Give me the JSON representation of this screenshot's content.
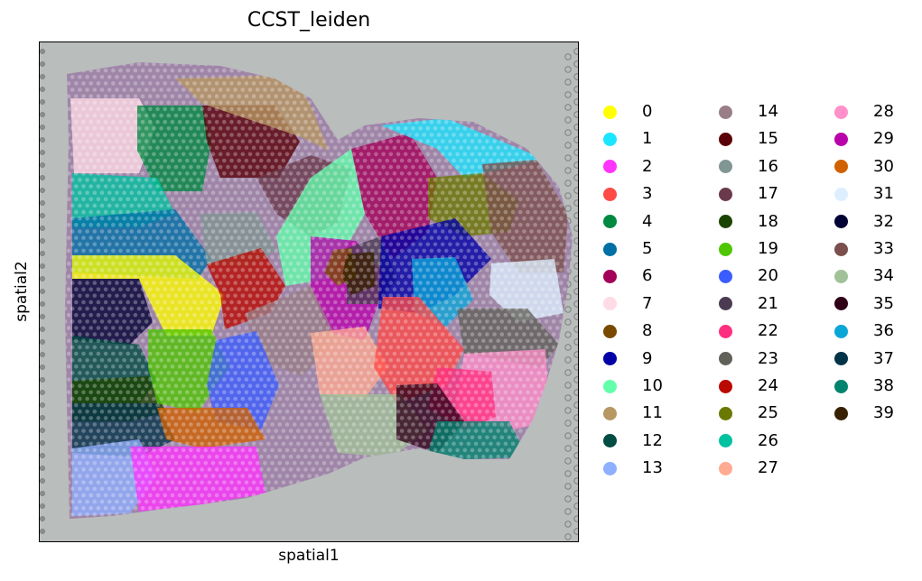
{
  "chart_data": {
    "type": "scatter",
    "title": "CCST_leiden",
    "xlabel": "spatial1",
    "ylabel": "spatial2",
    "x_ticks": "none",
    "y_ticks": "none",
    "grid": false,
    "background": "histology tissue image",
    "legend_placement": "right",
    "legend_columns": 3,
    "series": [
      {
        "name": "0",
        "color": "#ffff00"
      },
      {
        "name": "1",
        "color": "#1ce6ff"
      },
      {
        "name": "2",
        "color": "#ff34ff"
      },
      {
        "name": "3",
        "color": "#ff4a46"
      },
      {
        "name": "4",
        "color": "#008941"
      },
      {
        "name": "5",
        "color": "#006fa6"
      },
      {
        "name": "6",
        "color": "#a30059"
      },
      {
        "name": "7",
        "color": "#ffdbe5"
      },
      {
        "name": "8",
        "color": "#7a4900"
      },
      {
        "name": "9",
        "color": "#0000a6"
      },
      {
        "name": "10",
        "color": "#63ffac"
      },
      {
        "name": "11",
        "color": "#b79762"
      },
      {
        "name": "12",
        "color": "#004d43"
      },
      {
        "name": "13",
        "color": "#8fb0ff"
      },
      {
        "name": "14",
        "color": "#997d87"
      },
      {
        "name": "15",
        "color": "#5a0007"
      },
      {
        "name": "16",
        "color": "#809693"
      },
      {
        "name": "17",
        "color": "#6a3a4c"
      },
      {
        "name": "18",
        "color": "#1b4400"
      },
      {
        "name": "19",
        "color": "#4fc601"
      },
      {
        "name": "20",
        "color": "#3b5dff"
      },
      {
        "name": "21",
        "color": "#4a3b53"
      },
      {
        "name": "22",
        "color": "#ff2f80"
      },
      {
        "name": "23",
        "color": "#61615a"
      },
      {
        "name": "24",
        "color": "#ba0900"
      },
      {
        "name": "25",
        "color": "#6b7900"
      },
      {
        "name": "26",
        "color": "#00c2a0"
      },
      {
        "name": "27",
        "color": "#ffaa92"
      },
      {
        "name": "28",
        "color": "#ff90c9"
      },
      {
        "name": "29",
        "color": "#b903aa"
      },
      {
        "name": "30",
        "color": "#d16100"
      },
      {
        "name": "31",
        "color": "#ddefff"
      },
      {
        "name": "32",
        "color": "#000035"
      },
      {
        "name": "33",
        "color": "#7b4f4b"
      },
      {
        "name": "34",
        "color": "#a1c299"
      },
      {
        "name": "35",
        "color": "#300018"
      },
      {
        "name": "36",
        "color": "#0aa6d8"
      },
      {
        "name": "37",
        "color": "#013349"
      },
      {
        "name": "38",
        "color": "#00846f"
      },
      {
        "name": "39",
        "color": "#372101"
      }
    ]
  }
}
